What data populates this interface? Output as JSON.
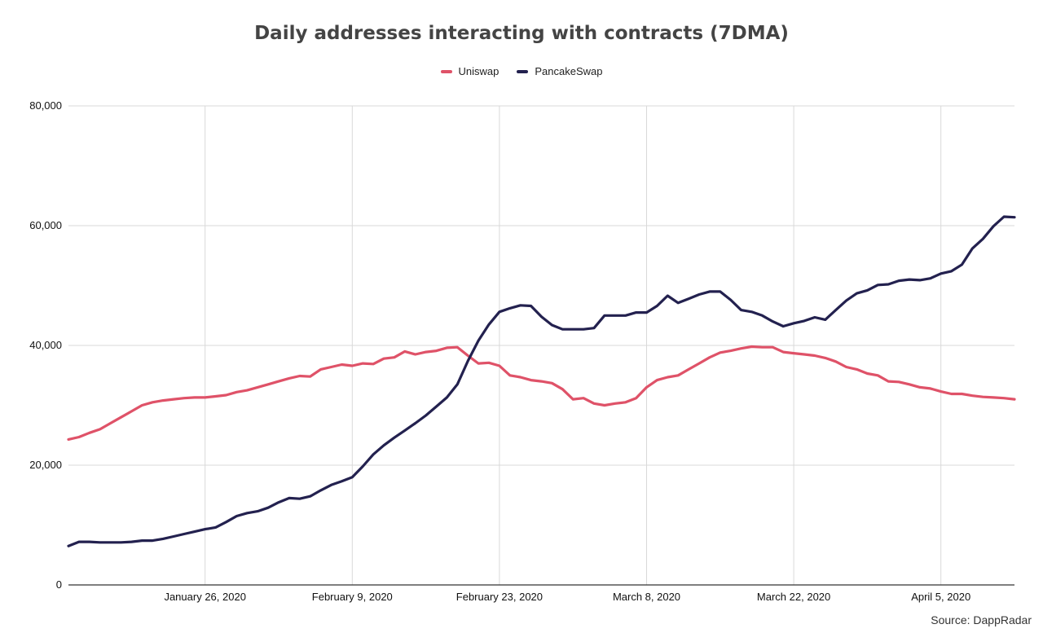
{
  "title": "Daily addresses interacting with contracts (7DMA)",
  "source": "Source: DappRadar",
  "colors": {
    "uniswap": "#df5268",
    "pancakeswap": "#23214f",
    "grid": "#d9d9d9",
    "axis": "#333333"
  },
  "legend": [
    {
      "name": "Uniswap",
      "color": "#df5268"
    },
    {
      "name": "PancakeSwap",
      "color": "#23214f"
    }
  ],
  "chart_data": {
    "type": "line",
    "title": "Daily addresses interacting with contracts (7DMA)",
    "xlabel": "",
    "ylabel": "",
    "ylim": [
      0,
      80000
    ],
    "yticks": [
      "0",
      "20,000",
      "40,000",
      "60,000",
      "80,000"
    ],
    "ytick_values": [
      0,
      20000,
      40000,
      60000,
      80000
    ],
    "xtick_labels": [
      "January 26, 2020",
      "February 9, 2020",
      "February 23, 2020",
      "March 8, 2020",
      "March 22, 2020",
      "April 5, 2020"
    ],
    "xtick_days": [
      13,
      27,
      41,
      55,
      69,
      83
    ],
    "x_days": [
      0,
      1,
      2,
      3,
      4,
      5,
      6,
      7,
      8,
      9,
      10,
      11,
      12,
      13,
      14,
      15,
      16,
      17,
      18,
      19,
      20,
      21,
      22,
      23,
      24,
      25,
      26,
      27,
      28,
      29,
      30,
      31,
      32,
      33,
      34,
      35,
      36,
      37,
      38,
      39,
      40,
      41,
      42,
      43,
      44,
      45,
      46,
      47,
      48,
      49,
      50,
      51,
      52,
      53,
      54,
      55,
      56,
      57,
      58,
      59,
      60,
      61,
      62,
      63,
      64,
      65,
      66,
      67,
      68,
      69,
      70,
      71,
      72,
      73,
      74,
      75,
      76,
      77,
      78,
      79,
      80,
      81,
      82,
      83,
      84,
      85,
      86,
      87,
      88,
      89,
      90
    ],
    "grid": true,
    "legend_position": "top-center",
    "series": [
      {
        "name": "Uniswap",
        "color": "#df5268",
        "values": [
          24300,
          24700,
          25400,
          26000,
          27000,
          28000,
          29000,
          30000,
          30500,
          30800,
          31000,
          31200,
          31300,
          31300,
          31500,
          31700,
          32200,
          32500,
          33000,
          33500,
          34000,
          34500,
          34900,
          34800,
          36000,
          36400,
          36800,
          36600,
          37000,
          36900,
          37800,
          38000,
          39000,
          38500,
          38900,
          39100,
          39600,
          39700,
          38300,
          37000,
          37100,
          36600,
          35000,
          34700,
          34200,
          34000,
          33700,
          32700,
          31000,
          31200,
          30300,
          30000,
          30300,
          30500,
          31200,
          33000,
          34200,
          34700,
          35000,
          36000,
          37000,
          38000,
          38800,
          39100,
          39500,
          39800,
          39700,
          39700,
          38900,
          38700,
          38500,
          38300,
          37900,
          37300,
          36400,
          36000,
          35300,
          35000,
          34000,
          33900,
          33500,
          33000,
          32800,
          32300,
          31900,
          31900,
          31600,
          31400,
          31300,
          31200,
          31000
        ]
      },
      {
        "name": "PancakeSwap",
        "color": "#23214f",
        "values": [
          6500,
          7200,
          7200,
          7100,
          7100,
          7100,
          7200,
          7400,
          7400,
          7700,
          8100,
          8500,
          8900,
          9300,
          9600,
          10500,
          11500,
          12000,
          12300,
          12900,
          13800,
          14500,
          14400,
          14800,
          15800,
          16700,
          17300,
          18000,
          19800,
          21800,
          23300,
          24600,
          25800,
          27000,
          28300,
          29800,
          31300,
          33500,
          37400,
          40800,
          43500,
          45600,
          46200,
          46700,
          46600,
          44800,
          43400,
          42700,
          42700,
          42700,
          42900,
          45000,
          45000,
          45000,
          45500,
          45500,
          46600,
          48300,
          47100,
          47800,
          48500,
          49000,
          49000,
          47600,
          45900,
          45600,
          45000,
          44000,
          43200,
          43700,
          44100,
          44700,
          44300,
          45900,
          47500,
          48700,
          49200,
          50100,
          50200,
          50800,
          51000,
          50900,
          51200,
          52000,
          52400,
          53500,
          56200,
          57800,
          59900,
          61500,
          61400
        ]
      }
    ]
  }
}
